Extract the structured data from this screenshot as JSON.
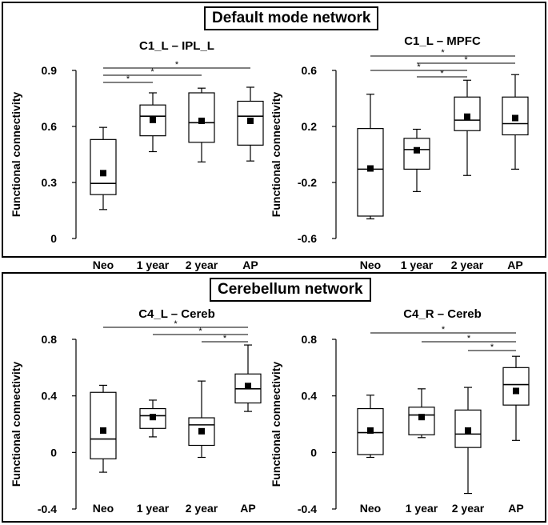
{
  "sections": {
    "top": {
      "title": "Default mode network"
    },
    "bottom": {
      "title": "Cerebellum network"
    }
  },
  "chart_data": [
    {
      "type": "box",
      "title": "C1_L – IPL_L",
      "ylabel": "Functional connectivity",
      "ylim": [
        0,
        0.9
      ],
      "yticks": [
        0,
        0.3,
        0.6,
        0.9
      ],
      "ytick_labels": [
        "0",
        "0.3",
        "0.6",
        "0.9"
      ],
      "categories": [
        "Neo",
        "1 year",
        "2 year",
        "AP"
      ],
      "boxes": [
        {
          "min": 0.155,
          "q1": 0.235,
          "median": 0.295,
          "q3": 0.53,
          "max": 0.595,
          "mean": 0.35
        },
        {
          "min": 0.465,
          "q1": 0.55,
          "median": 0.655,
          "q3": 0.715,
          "max": 0.78,
          "mean": 0.635
        },
        {
          "min": 0.41,
          "q1": 0.515,
          "median": 0.62,
          "q3": 0.78,
          "max": 0.805,
          "mean": 0.63
        },
        {
          "min": 0.415,
          "q1": 0.5,
          "median": 0.655,
          "q3": 0.735,
          "max": 0.81,
          "mean": 0.63
        }
      ],
      "significance": [
        {
          "from": "Neo",
          "to": "1 year",
          "label": "*"
        },
        {
          "from": "Neo",
          "to": "2 year",
          "label": "*"
        },
        {
          "from": "Neo",
          "to": "AP",
          "label": "*"
        }
      ]
    },
    {
      "type": "box",
      "title": "C1_L – MPFC",
      "ylabel": "Functional connectivity",
      "ylim": [
        -0.6,
        0.6
      ],
      "yticks": [
        -0.6,
        -0.2,
        0.2,
        0.6
      ],
      "ytick_labels": [
        "-0.6",
        "-0.2",
        "0.2",
        "0.6"
      ],
      "categories": [
        "Neo",
        "1 year",
        "2 year",
        "AP"
      ],
      "boxes": [
        {
          "min": -0.46,
          "q1": -0.44,
          "median": -0.105,
          "q3": 0.185,
          "max": 0.43,
          "mean": -0.1
        },
        {
          "min": -0.265,
          "q1": -0.105,
          "median": 0.035,
          "q3": 0.115,
          "max": 0.18,
          "mean": 0.03
        },
        {
          "min": -0.15,
          "q1": 0.17,
          "median": 0.245,
          "q3": 0.41,
          "max": 0.53,
          "mean": 0.27
        },
        {
          "min": -0.105,
          "q1": 0.14,
          "median": 0.22,
          "q3": 0.41,
          "max": 0.57,
          "mean": 0.26
        }
      ],
      "significance": [
        {
          "from": "2 year",
          "to": "AP",
          "label": "*",
          "note": "none"
        },
        {
          "from": "Neo",
          "to": "2 year",
          "label": "*"
        },
        {
          "from": "1 year",
          "to": "2 year",
          "label": "*"
        },
        {
          "from": "Neo",
          "to": "AP",
          "label": "*"
        },
        {
          "from": "1 year",
          "to": "AP",
          "label": "*"
        }
      ]
    },
    {
      "type": "box",
      "title": "C4_L – Cereb",
      "ylabel": "Functional connectivity",
      "ylim": [
        -0.4,
        0.8
      ],
      "yticks": [
        -0.4,
        0,
        0.4,
        0.8
      ],
      "ytick_labels": [
        "-0.4",
        "0",
        "0.4",
        "0.8"
      ],
      "categories": [
        "Neo",
        "1 year",
        "2 year",
        "AP"
      ],
      "boxes": [
        {
          "min": -0.14,
          "q1": -0.045,
          "median": 0.095,
          "q3": 0.425,
          "max": 0.475,
          "mean": 0.155
        },
        {
          "min": 0.11,
          "q1": 0.17,
          "median": 0.26,
          "q3": 0.31,
          "max": 0.37,
          "mean": 0.25
        },
        {
          "min": -0.035,
          "q1": 0.05,
          "median": 0.195,
          "q3": 0.245,
          "max": 0.505,
          "mean": 0.15
        },
        {
          "min": 0.29,
          "q1": 0.35,
          "median": 0.45,
          "q3": 0.555,
          "max": 0.76,
          "mean": 0.47
        }
      ],
      "significance": [
        {
          "from": "Neo",
          "to": "AP",
          "label": "*"
        },
        {
          "from": "1 year",
          "to": "AP",
          "label": "*"
        },
        {
          "from": "2 year",
          "to": "AP",
          "label": "*"
        }
      ]
    },
    {
      "type": "box",
      "title": "C4_R – Cereb",
      "ylabel": "Functional connectivity",
      "ylim": [
        -0.4,
        0.8
      ],
      "yticks": [
        -0.4,
        0,
        0.4,
        0.8
      ],
      "ytick_labels": [
        "-0.4",
        "0",
        "0.4",
        "0.8"
      ],
      "categories": [
        "Neo",
        "1 year",
        "2 year",
        "AP"
      ],
      "boxes": [
        {
          "min": -0.035,
          "q1": -0.015,
          "median": 0.14,
          "q3": 0.31,
          "max": 0.405,
          "mean": 0.155
        },
        {
          "min": 0.105,
          "q1": 0.125,
          "median": 0.265,
          "q3": 0.32,
          "max": 0.45,
          "mean": 0.25
        },
        {
          "min": -0.29,
          "q1": 0.035,
          "median": 0.13,
          "q3": 0.3,
          "max": 0.46,
          "mean": 0.155
        },
        {
          "min": 0.085,
          "q1": 0.335,
          "median": 0.48,
          "q3": 0.6,
          "max": 0.68,
          "mean": 0.435
        }
      ],
      "significance": [
        {
          "from": "Neo",
          "to": "AP",
          "label": "*"
        },
        {
          "from": "1 year",
          "to": "AP",
          "label": "*"
        },
        {
          "from": "2 year",
          "to": "AP",
          "label": "*"
        }
      ]
    }
  ]
}
